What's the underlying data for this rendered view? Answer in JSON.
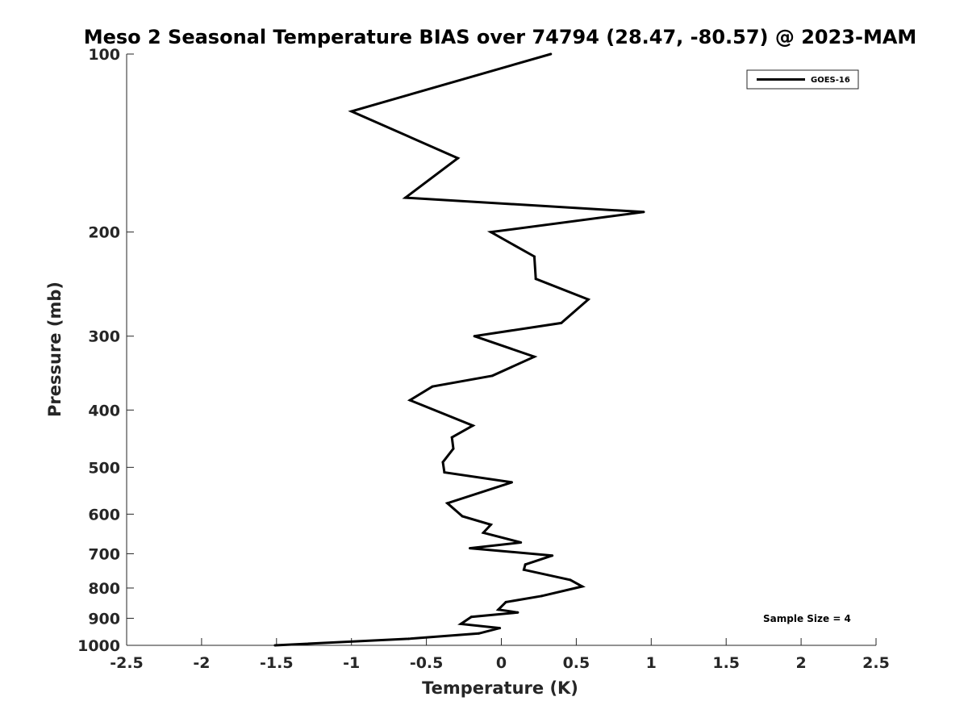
{
  "chart_data": {
    "type": "line",
    "title": "Meso 2 Seasonal Temperature BIAS over 74794 (28.47, -80.57) @ 2023-MAM",
    "xlabel": "Temperature (K)",
    "ylabel": "Pressure (mb)",
    "xlim": [
      -2.5,
      2.5
    ],
    "ylim": [
      100,
      1000
    ],
    "y_scale": "log",
    "y_reversed": true,
    "x_ticks": [
      "-2.5",
      "-2",
      "-1.5",
      "-1",
      "-0.5",
      "0",
      "0.5",
      "1",
      "1.5",
      "2",
      "2.5"
    ],
    "y_ticks": [
      "100",
      "200",
      "300",
      "400",
      "500",
      "600",
      "700",
      "800",
      "900",
      "1000"
    ],
    "grid": false,
    "legend_position": "top-right",
    "line_color": "#000000",
    "series": [
      {
        "name": "GOES-16",
        "x": [
          0.33,
          -1.0,
          -0.29,
          -0.64,
          0.95,
          -0.07,
          0.22,
          0.23,
          0.58,
          0.4,
          -0.18,
          0.22,
          -0.06,
          -0.46,
          -0.61,
          -0.19,
          -0.33,
          -0.32,
          -0.39,
          -0.38,
          0.07,
          -0.36,
          -0.26,
          -0.07,
          -0.12,
          0.13,
          -0.21,
          0.34,
          0.16,
          0.15,
          0.46,
          0.54,
          0.27,
          0.03,
          -0.02,
          0.11,
          -0.2,
          -0.27,
          -0.01,
          -0.15,
          -0.62,
          -1.51
        ],
        "y": [
          100,
          125,
          150,
          175,
          185,
          200,
          220,
          240,
          260,
          285,
          300,
          325,
          350,
          365,
          385,
          425,
          445,
          465,
          490,
          510,
          530,
          575,
          605,
          625,
          645,
          670,
          685,
          705,
          730,
          745,
          775,
          795,
          825,
          845,
          870,
          880,
          895,
          920,
          935,
          955,
          975,
          1000
        ]
      }
    ],
    "annotations": [
      "Sample Size = 4"
    ]
  }
}
